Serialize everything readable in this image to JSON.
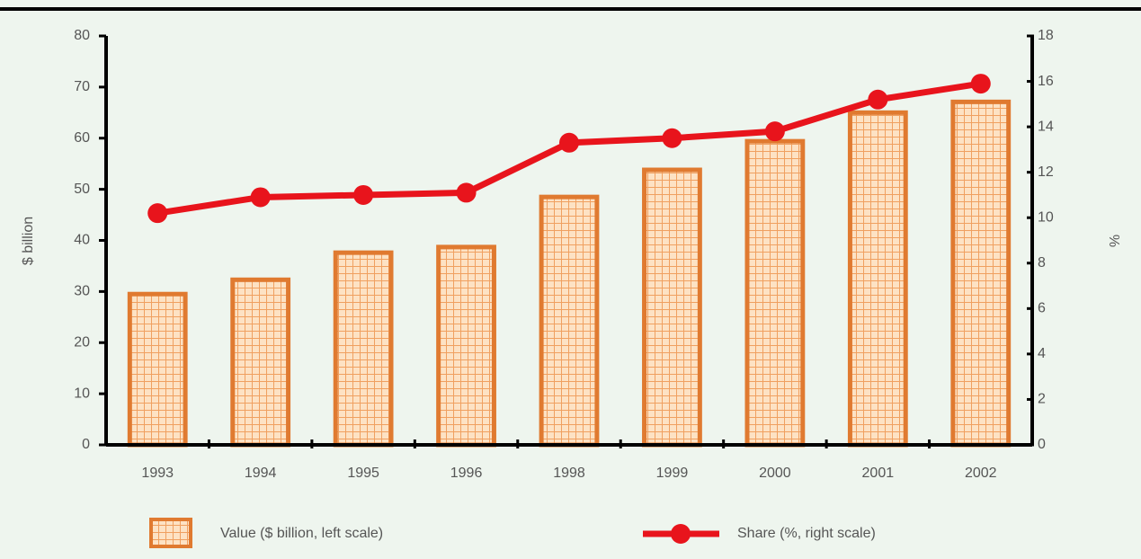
{
  "chart_data": {
    "type": "bar",
    "categories": [
      "1993",
      "1994",
      "1995",
      "1996",
      "1998",
      "1999",
      "2000",
      "2001",
      "2002"
    ],
    "series": [
      {
        "name": "Value ($ billion, left scale)",
        "color": "#e07a30",
        "values": [
          29.5,
          32.3,
          37.6,
          38.7,
          48.5,
          53.8,
          59.4,
          65,
          67.1
        ]
      },
      {
        "name": "Share (%, right scale)",
        "color": "#e8141c",
        "type": "line",
        "axis": "y2",
        "values": [
          10.2,
          10.9,
          11,
          11.1,
          13.3,
          13.5,
          13.8,
          15.2,
          15.9
        ]
      }
    ],
    "ylabel": "$ billion",
    "y2label": "%",
    "ylim": [
      0,
      80
    ],
    "yticks": [
      0,
      10,
      20,
      30,
      40,
      50,
      60,
      70,
      80
    ],
    "y2lim": [
      0,
      18
    ],
    "y2ticks": [
      0,
      2,
      4,
      6,
      8,
      10,
      12,
      14,
      16,
      18
    ]
  }
}
